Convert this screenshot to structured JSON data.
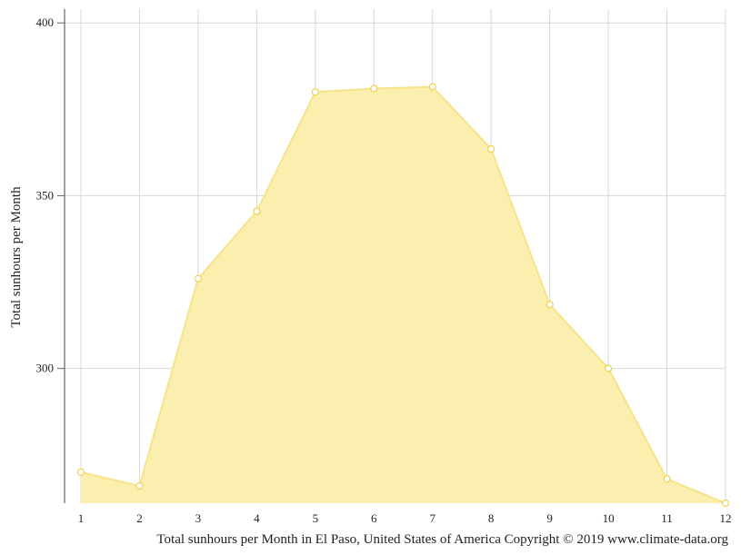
{
  "chart_data": {
    "type": "area",
    "x": [
      1,
      2,
      3,
      4,
      5,
      6,
      7,
      8,
      9,
      10,
      11,
      12
    ],
    "values": [
      270.0,
      266.0,
      326.0,
      345.5,
      380.0,
      381.0,
      381.5,
      363.5,
      318.5,
      300.0,
      268.0,
      261.0
    ],
    "ylabel": "Total sunhours per Month",
    "caption": "Total sunhours per Month in El Paso, United States of America Copyright © 2019 www.climate-data.org",
    "yticks": [
      300,
      350,
      400
    ],
    "xticks": [
      "1",
      "2",
      "3",
      "4",
      "5",
      "6",
      "7",
      "8",
      "9",
      "10",
      "11",
      "12"
    ],
    "ylim": [
      261,
      404
    ],
    "grid": true,
    "fill_color": "#fbefb0",
    "line_color": "#f7e38a",
    "point_stroke": "#eed14e"
  }
}
